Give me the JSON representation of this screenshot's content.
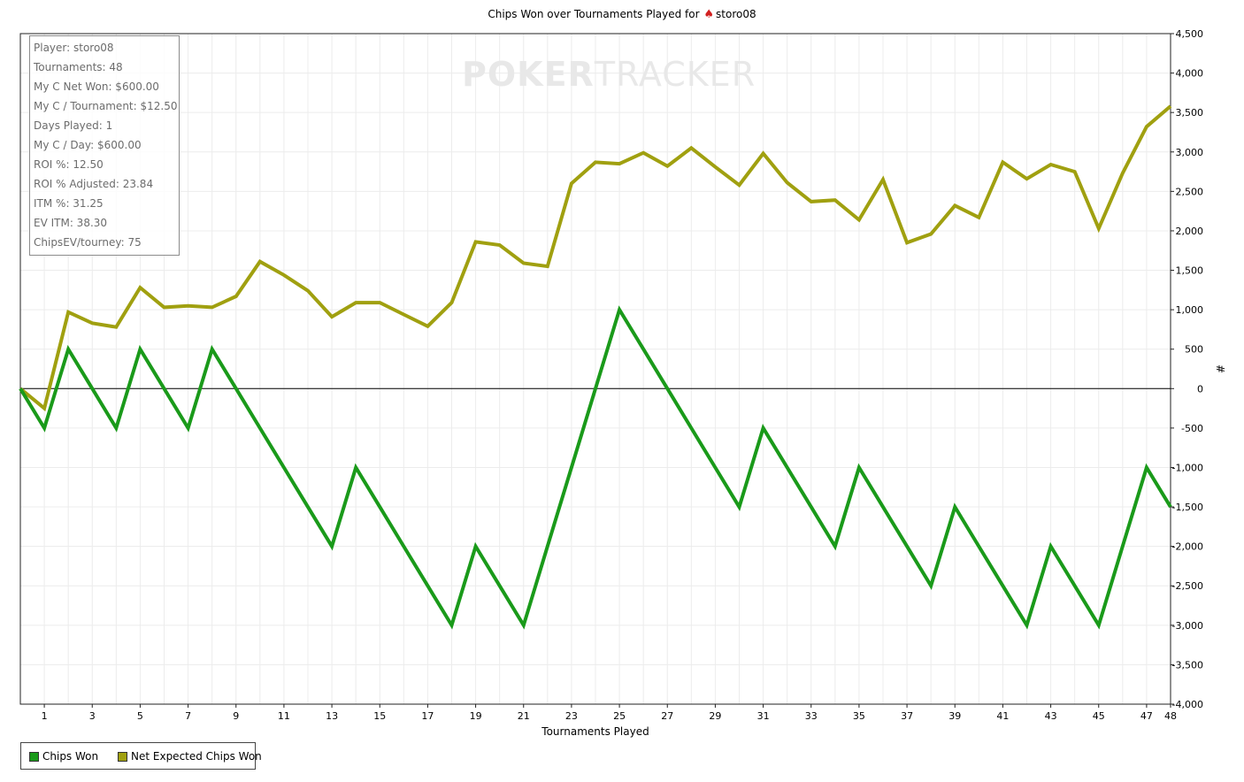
{
  "title": {
    "prefix": "Chips Won over Tournaments Played for",
    "player": "storo08"
  },
  "watermark": {
    "part_a": "POKER",
    "part_b": "TRACKER"
  },
  "stats": [
    "Player: storo08",
    "Tournaments: 48",
    "My C Net Won: $600.00",
    "My C / Tournament: $12.50",
    "Days Played: 1",
    "My C / Day: $600.00",
    "ROI %: 12.50",
    "ROI % Adjusted: 23.84",
    "ITM %: 31.25",
    "EV ITM: 38.30",
    "ChipsEV/tourney: 75"
  ],
  "legend": {
    "chips_won": "Chips Won",
    "net_expected": "Net Expected Chips Won"
  },
  "colors": {
    "chips_won": "#1a9a1a",
    "net_expected": "#a0a010",
    "zero_line": "#000000",
    "grid": "#ececec"
  },
  "chart_data": {
    "type": "line",
    "title": "Chips Won over Tournaments Played for storo08",
    "xlabel": "Tournaments Played",
    "ylabel": "#",
    "xlim": [
      0,
      48
    ],
    "ylim": [
      -4000,
      4500
    ],
    "x_ticks": [
      1,
      3,
      5,
      7,
      9,
      11,
      13,
      15,
      17,
      19,
      21,
      23,
      25,
      27,
      29,
      31,
      33,
      35,
      37,
      39,
      41,
      43,
      45,
      47,
      48
    ],
    "y_ticks": [
      4500,
      4000,
      3500,
      3000,
      2500,
      2000,
      1500,
      1000,
      500,
      0,
      -500,
      -1000,
      -1500,
      -2000,
      -2500,
      -3000,
      -3500,
      -4000
    ],
    "y_tick_labels": [
      "4,500",
      "4,000",
      "3,500",
      "3,000",
      "2,500",
      "2,000",
      "1,500",
      "1,000",
      "500",
      "0",
      "-500",
      "-1,000",
      "-1,500",
      "-2,000",
      "-2,500",
      "-3,000",
      "-3,500",
      "-4,000"
    ],
    "grid": true,
    "legend_position": "bottom-left",
    "x": [
      0,
      1,
      2,
      3,
      4,
      5,
      6,
      7,
      8,
      9,
      10,
      11,
      12,
      13,
      14,
      15,
      16,
      17,
      18,
      19,
      20,
      21,
      22,
      23,
      24,
      25,
      26,
      27,
      28,
      29,
      30,
      31,
      32,
      33,
      34,
      35,
      36,
      37,
      38,
      39,
      40,
      41,
      42,
      43,
      44,
      45,
      46,
      47,
      48
    ],
    "series": [
      {
        "name": "Chips Won",
        "values": [
          0,
          -500,
          500,
          0,
          -500,
          500,
          0,
          -500,
          500,
          0,
          -500,
          -1000,
          -1500,
          -2000,
          -1000,
          -1500,
          -2000,
          -2500,
          -3000,
          -2000,
          -2500,
          -3000,
          -2000,
          -1000,
          0,
          1000,
          500,
          0,
          -500,
          -1000,
          -1500,
          -500,
          -1000,
          -1500,
          -2000,
          -1000,
          -1500,
          -2000,
          -2500,
          -1500,
          -2000,
          -2500,
          -3000,
          -2000,
          -2500,
          -3000,
          -2000,
          -1000,
          -1500
        ]
      },
      {
        "name": "Net Expected Chips Won",
        "values": [
          0,
          -250,
          970,
          830,
          780,
          1280,
          1030,
          1050,
          1030,
          1170,
          1610,
          1440,
          1240,
          910,
          1090,
          1090,
          940,
          790,
          1090,
          1860,
          1820,
          1590,
          1550,
          2600,
          2870,
          2850,
          2990,
          2820,
          3050,
          2810,
          2580,
          2980,
          2610,
          2370,
          2390,
          2140,
          2650,
          1850,
          1960,
          2320,
          2170,
          2870,
          2660,
          2840,
          2750,
          2030,
          2730,
          3320,
          3580
        ]
      }
    ]
  }
}
